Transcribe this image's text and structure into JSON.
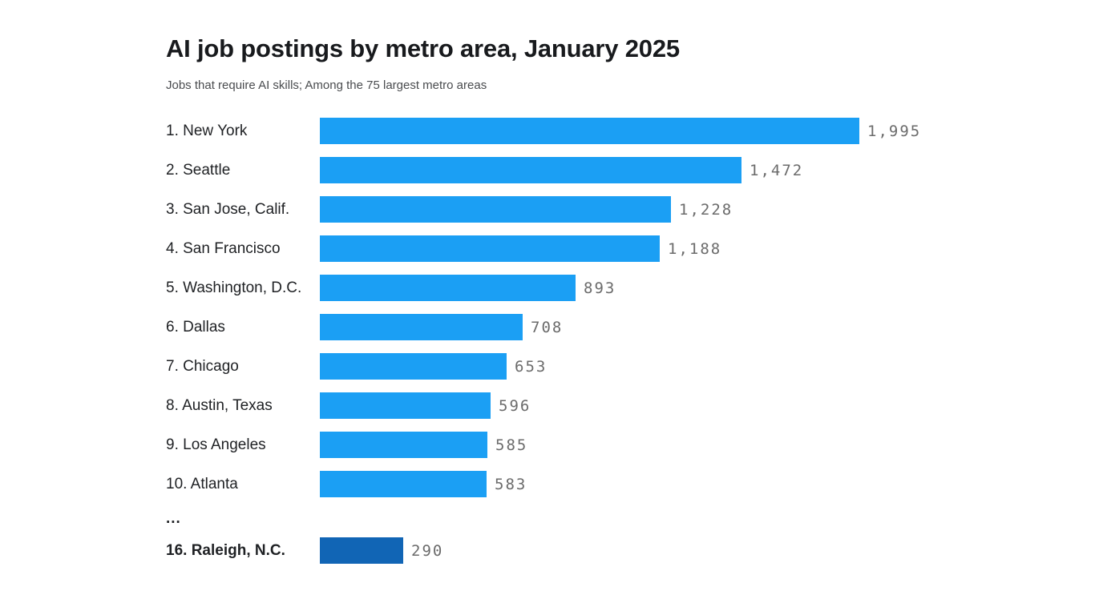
{
  "header": {
    "title": "AI job postings by metro area, January 2025",
    "subtitle": "Jobs that require AI skills; Among the 75 largest metro areas"
  },
  "colors": {
    "bar": "#1b9ff4",
    "highlight_bar": "#1165b5",
    "value_text": "#6b6b6b",
    "label_text": "#1f2124"
  },
  "chart_data": {
    "type": "bar",
    "orientation": "horizontal",
    "title": "AI job postings by metro area, January 2025",
    "subtitle": "Jobs that require AI skills; Among the 75 largest metro areas",
    "categories": [
      "New York",
      "Seattle",
      "San Jose, Calif.",
      "San Francisco",
      "Washington, D.C.",
      "Dallas",
      "Chicago",
      "Austin, Texas",
      "Los Angeles",
      "Atlanta",
      "Raleigh, N.C."
    ],
    "values": [
      1995,
      1472,
      1228,
      1188,
      893,
      708,
      653,
      596,
      585,
      583,
      290
    ],
    "value_axis_visible": false,
    "grid": false,
    "legend": false,
    "rows": [
      {
        "rank": 1,
        "label": "1. New York",
        "value": 1995,
        "value_display": "1,995",
        "highlight": false
      },
      {
        "rank": 2,
        "label": "2. Seattle",
        "value": 1472,
        "value_display": "1,472",
        "highlight": false
      },
      {
        "rank": 3,
        "label": "3. San Jose, Calif.",
        "value": 1228,
        "value_display": "1,228",
        "highlight": false
      },
      {
        "rank": 4,
        "label": "4. San Francisco",
        "value": 1188,
        "value_display": "1,188",
        "highlight": false
      },
      {
        "rank": 5,
        "label": "5. Washington, D.C.",
        "value": 893,
        "value_display": "893",
        "highlight": false
      },
      {
        "rank": 6,
        "label": "6. Dallas",
        "value": 708,
        "value_display": "708",
        "highlight": false
      },
      {
        "rank": 7,
        "label": "7. Chicago",
        "value": 653,
        "value_display": "653",
        "highlight": false
      },
      {
        "rank": 8,
        "label": "8. Austin, Texas",
        "value": 596,
        "value_display": "596",
        "highlight": false
      },
      {
        "rank": 9,
        "label": "9. Los Angeles",
        "value": 585,
        "value_display": "585",
        "highlight": false
      },
      {
        "rank": 10,
        "label": "10. Atlanta",
        "value": 583,
        "value_display": "583",
        "highlight": false
      },
      {
        "type": "ellipsis",
        "label": "..."
      },
      {
        "rank": 16,
        "label": "16. Raleigh, N.C.",
        "value": 290,
        "value_display": "290",
        "highlight": true
      }
    ]
  }
}
